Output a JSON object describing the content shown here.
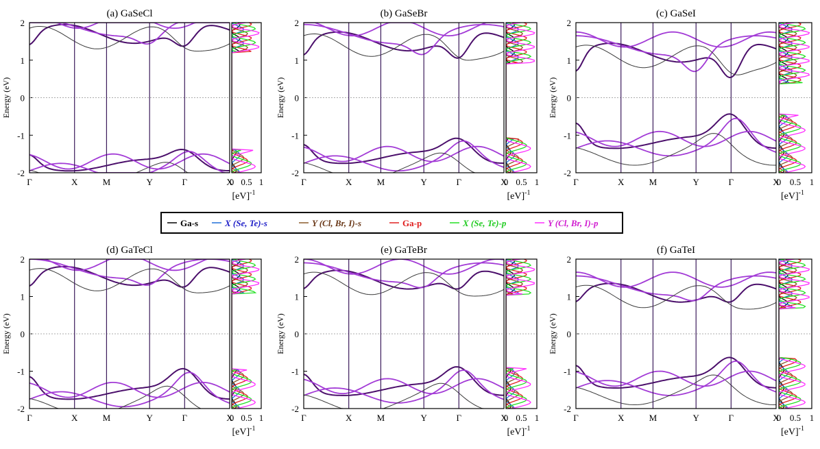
{
  "figure": {
    "legend": [
      {
        "label": "Ga-s",
        "color": "#000000"
      },
      {
        "label": "X (Se, Te)-s",
        "color": "#1f6fd8"
      },
      {
        "label": "Y (Cl, Br, I)-s",
        "color": "#8b5a2b"
      },
      {
        "label": "Ga-p",
        "color": "#e02020"
      },
      {
        "label": "X (Se, Te)-p",
        "color": "#22e022"
      },
      {
        "label": "Y (Cl, Br, I)-p",
        "color": "#ff2dff"
      }
    ],
    "band_colors": {
      "main": "#4b0f6b",
      "purple": "#a23ad6",
      "thin": "#3a3a3a"
    },
    "y_axis_label": "Energy (eV)",
    "dos_axis_label": "[eV]",
    "dos_axis_exp": "-1",
    "dos_ticks": [
      "0",
      "0.5",
      "1"
    ],
    "kpath_labels": [
      "Γ",
      "X",
      "M",
      "Y",
      "Γ",
      "X"
    ],
    "y_ticks": [
      "2",
      "1",
      "0",
      "-1",
      "-2"
    ]
  },
  "chart_data": [
    {
      "type": "line",
      "title": "(a) GaSeCl",
      "xlabel": "",
      "ylabel": "Energy (eV)",
      "ylim": [
        -2,
        2
      ],
      "vbm": -1.4,
      "cbm": 1.22,
      "cb_center": 1.7,
      "vb_center": -1.8
    },
    {
      "type": "line",
      "title": "(b) GaSeBr",
      "xlabel": "",
      "ylabel": "Energy (eV)",
      "ylim": [
        -2,
        2
      ],
      "vbm": -1.1,
      "cbm": 0.9,
      "cb_center": 1.5,
      "vb_center": -1.6
    },
    {
      "type": "line",
      "title": "(c) GaSeI",
      "xlabel": "",
      "ylabel": "Energy (eV)",
      "ylim": [
        -2,
        2
      ],
      "vbm": -0.45,
      "cbm": 0.38,
      "cb_center": 1.2,
      "vb_center": -1.2
    },
    {
      "type": "line",
      "title": "(d) GaTeCl",
      "xlabel": "",
      "ylabel": "Energy (eV)",
      "ylim": [
        -2,
        2
      ],
      "vbm": -0.95,
      "cbm": 1.1,
      "cb_center": 1.55,
      "vb_center": -1.6
    },
    {
      "type": "line",
      "title": "(e) GaTeBr",
      "xlabel": "",
      "ylabel": "Energy (eV)",
      "ylim": [
        -2,
        2
      ],
      "vbm": -0.9,
      "cbm": 1.05,
      "cb_center": 1.45,
      "vb_center": -1.5
    },
    {
      "type": "line",
      "title": "(f) GaTeI",
      "xlabel": "",
      "ylabel": "Energy (eV)",
      "ylim": [
        -2,
        2
      ],
      "vbm": -0.65,
      "cbm": 0.7,
      "cb_center": 1.1,
      "vb_center": -1.3
    }
  ]
}
